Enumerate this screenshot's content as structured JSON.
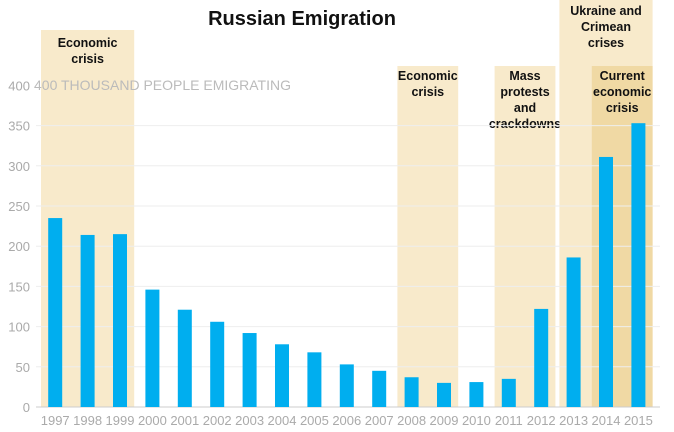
{
  "chart_data": {
    "type": "bar",
    "title": "Russian Emigration",
    "ylabel": "400 THOUSAND PEOPLE EMIGRATING",
    "ylim": [
      0,
      400
    ],
    "yticks": [
      0,
      50,
      100,
      150,
      200,
      250,
      300,
      350
    ],
    "grid": true,
    "categories": [
      "1997",
      "1998",
      "1999",
      "2000",
      "2001",
      "2002",
      "2003",
      "2004",
      "2005",
      "2006",
      "2007",
      "2008",
      "2009",
      "2010",
      "2011",
      "2012",
      "2013",
      "2014",
      "2015"
    ],
    "values": [
      235,
      214,
      215,
      146,
      121,
      106,
      92,
      78,
      68,
      53,
      45,
      37,
      30,
      31,
      35,
      122,
      186,
      311,
      353
    ],
    "bar_color": "#00aeef",
    "annotations": [
      {
        "label": [
          "Economic",
          "crisis"
        ],
        "from": "1997",
        "to": "1999",
        "color": "#f8eacb"
      },
      {
        "label": [
          "Economic",
          "crisis"
        ],
        "from": "2008",
        "to": "2009",
        "color": "#f8eacb"
      },
      {
        "label": [
          "Mass",
          "protests",
          "and",
          "crackdowns"
        ],
        "from": "2011",
        "to": "2012",
        "color": "#f8eacb"
      },
      {
        "label": [
          "Ukraine and",
          "Crimean",
          "crises"
        ],
        "from": "2013",
        "to": "2015",
        "color": "#f8eacb"
      },
      {
        "label": [
          "Current",
          "economic",
          "crisis"
        ],
        "from": "2014",
        "to": "2015",
        "color": "#f0d9a4"
      }
    ]
  }
}
